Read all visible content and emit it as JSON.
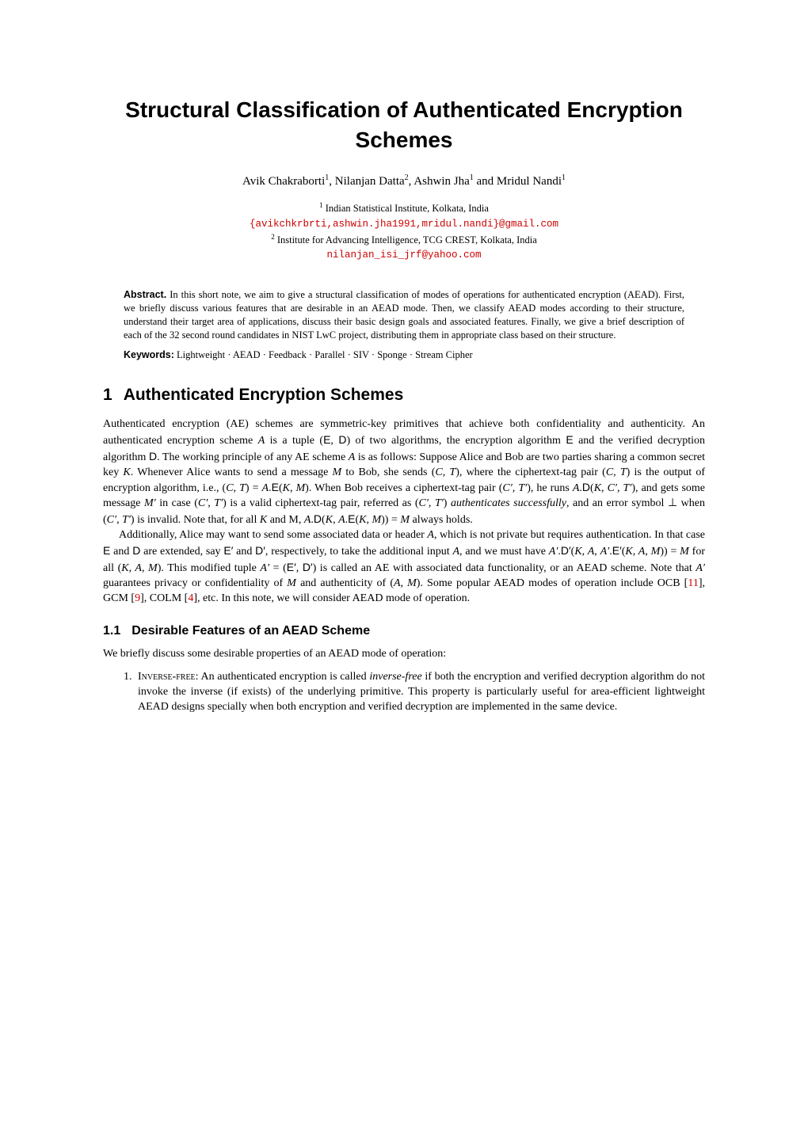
{
  "title": "Structural Classification of Authenticated Encryption Schemes",
  "authors_html": "Avik Chakraborti<sup class=\"fn\">1</sup>, Nilanjan Datta<sup class=\"fn\">2</sup>, Ashwin Jha<sup class=\"fn\">1</sup> and Mridul Nandi<sup class=\"fn\">1</sup>",
  "affiliation1_sup": "1",
  "affiliation1_text": " Indian Statistical Institute, Kolkata, India",
  "email1": "{avikchkrbrti,ashwin.jha1991,mridul.nandi}@gmail.com",
  "affiliation2_sup": "2",
  "affiliation2_text": " Institute for Advancing Intelligence, TCG CREST, Kolkata, India",
  "email2": "nilanjan_isi_jrf@yahoo.com",
  "abstract_label": "Abstract.",
  "abstract_text": " In this short note, we aim to give a structural classification of modes of operations for authenticated encryption (AEAD). First, we briefly discuss various features that are desirable in an AEAD mode. Then, we classify AEAD modes according to their structure, understand their target area of applications, discuss their basic design goals and associated features. Finally, we give a brief description of each of the 32 second round candidates in NIST LwC project, distributing them in appropriate class based on their structure.",
  "keywords_label": "Keywords:",
  "keywords_text": " Lightweight · AEAD · Feedback · Parallel · SIV · Sponge · Stream Cipher",
  "section1_number": "1",
  "section1_title": "Authenticated Encryption Schemes",
  "para1_html": "Authenticated encryption (AE) schemes are symmetric-key primitives that achieve both confidentiality and authenticity. An authenticated encryption scheme <span class=\"cal\">A</span> is a tuple (<span class=\"sf\">E</span>, <span class=\"sf\">D</span>) of two algorithms, the encryption algorithm <span class=\"sf\">E</span> and the verified decryption algorithm <span class=\"sf\">D</span>. The working principle of any AE scheme <span class=\"cal\">A</span> is as follows: Suppose Alice and Bob are two parties sharing a common secret key <span class=\"math\">K</span>. Whenever Alice wants to send a message <span class=\"math\">M</span> to Bob, she sends (<span class=\"math\">C, T</span>), where the ciphertext-tag pair (<span class=\"math\">C, T</span>) is the output of encryption algorithm, i.e., (<span class=\"math\">C, T</span>) = <span class=\"cal\">A</span>.<span class=\"sf\">E</span>(<span class=\"math\">K, M</span>). When Bob receives a ciphertext-tag pair (<span class=\"math\">C′, T′</span>), he runs <span class=\"cal\">A</span>.<span class=\"sf\">D</span>(<span class=\"math\">K, C′, T′</span>), and gets some message <span class=\"math\">M′</span> in case (<span class=\"math\">C′, T′</span>) is a valid ciphertext-tag pair, referred as (<span class=\"math\">C′, T′</span>) <em>authenticates successfully</em>, and an error symbol ⊥ when (<span class=\"math\">C′, T′</span>) is invalid. Note that, for all <span class=\"math\">K</span> and M, <span class=\"cal\">A</span>.<span class=\"sf\">D</span>(<span class=\"math\">K</span>, <span class=\"cal\">A</span>.<span class=\"sf\">E</span>(<span class=\"math\">K, M</span>)) = <span class=\"math\">M</span> always holds.",
  "para2_html": "Additionally, Alice may want to send some associated data or header <span class=\"math\">A</span>, which is not private but requires authentication. In that case <span class=\"sf\">E</span> and <span class=\"sf\">D</span> are extended, say <span class=\"sf\">E′</span> and <span class=\"sf\">D′</span>, respectively, to take the additional input <span class=\"math\">A</span>, and we must have <span class=\"cal\">A′</span>.<span class=\"sf\">D′</span>(<span class=\"math\">K, A</span>, <span class=\"cal\">A′</span>.<span class=\"sf\">E′</span>(<span class=\"math\">K, A, M</span>)) = <span class=\"math\">M</span> for all (<span class=\"math\">K, A, M</span>). This modified tuple <span class=\"cal\">A′</span> = (<span class=\"sf\">E′</span>, <span class=\"sf\">D′</span>) is called an AE with associated data functionality, or an AEAD scheme. Note that <span class=\"cal\">A′</span> guarantees privacy or confidentiality of <span class=\"math\">M</span> and authenticity of (<span class=\"math\">A, M</span>). Some popular AEAD modes of operation include OCB [<span class=\"ref\">11</span>], GCM [<span class=\"ref\">9</span>], COLM [<span class=\"ref\">4</span>], etc. In this note, we will consider AEAD mode of operation.",
  "subsection11_number": "1.1",
  "subsection11_title": "Desirable Features of an AEAD Scheme",
  "para3_text": "We briefly discuss some desirable properties of an AEAD mode of operation:",
  "item1_html": "<span class=\"smallcaps\">Inverse-free</span>: An authenticated encryption is called <em>inverse-free</em> if both the encryption and verified decryption algorithm do not invoke the inverse (if exists) of the underlying primitive. This property is particularly useful for area-efficient lightweight AEAD designs specially when both encryption and verified decryption are implemented in the same device."
}
